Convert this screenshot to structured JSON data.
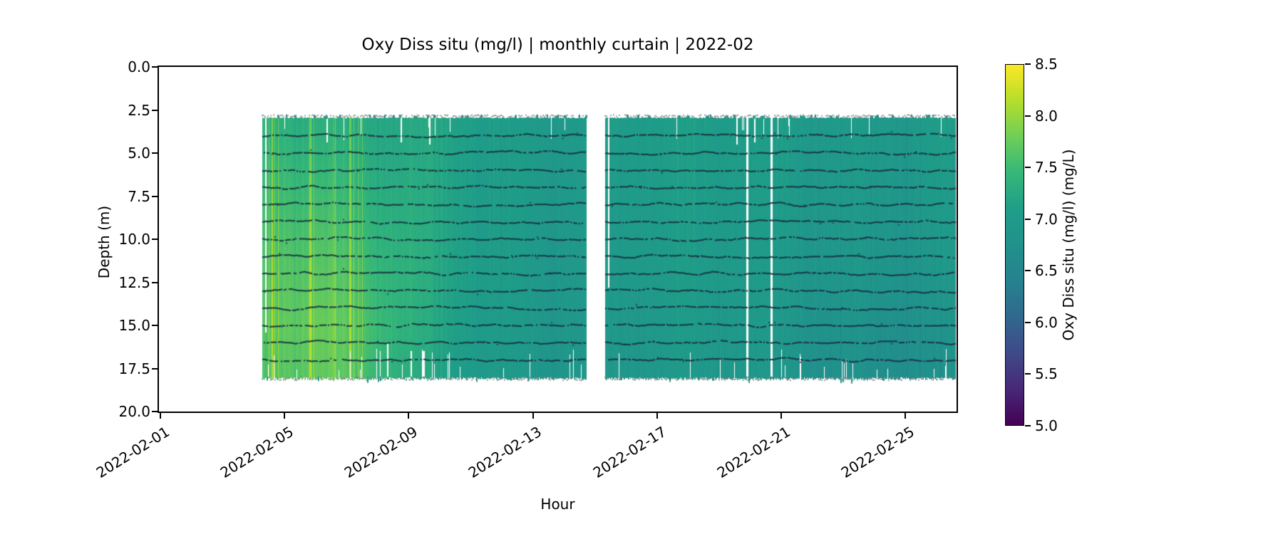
{
  "chart_data": {
    "type": "heatmap",
    "title": "Oxy Diss situ (mg/l) | monthly curtain | 2022-02",
    "xlabel": "Hour",
    "ylabel": "Depth (m)",
    "x_axis": {
      "tick_labels": [
        "2022-02-01",
        "2022-02-05",
        "2022-02-09",
        "2022-02-13",
        "2022-02-17",
        "2022-02-21",
        "2022-02-25"
      ],
      "tick_days": [
        0,
        4,
        8,
        12,
        16,
        20,
        24
      ],
      "day_range": [
        -0.05,
        25.68
      ],
      "tick_rotation_deg": 32
    },
    "y_axis": {
      "tick_labels": [
        "0.0",
        "2.5",
        "5.0",
        "7.5",
        "10.0",
        "12.5",
        "15.0",
        "17.5",
        "20.0"
      ],
      "tick_values": [
        0,
        2.5,
        5,
        7.5,
        10,
        12.5,
        15,
        17.5,
        20
      ],
      "range": [
        0,
        20
      ],
      "inverted": true
    },
    "colorbar": {
      "label": "Oxy Diss situ (mg/l) (mg/L)",
      "vmin": 5.0,
      "vmax": 8.5,
      "tick_labels": [
        "8.5",
        "8.0",
        "7.5",
        "7.0",
        "6.5",
        "6.0",
        "5.5",
        "5.0"
      ],
      "tick_values": [
        8.5,
        8.0,
        7.5,
        7.0,
        6.5,
        6.0,
        5.5,
        5.0
      ],
      "colormap": "viridis"
    },
    "viridis_stops": [
      "#440154",
      "#482878",
      "#3e4a89",
      "#31688e",
      "#26828e",
      "#21918c",
      "#1f9e89",
      "#35b779",
      "#6ece58",
      "#b5de2b",
      "#fde725"
    ],
    "segments": [
      {
        "day_start": 3.28,
        "day_end": 13.7
      },
      {
        "day_start": 14.32,
        "day_end": 25.6
      }
    ],
    "depth_extent": [
      2.92,
      17.98
    ],
    "grid": {
      "days": [
        3.28,
        4,
        5,
        6,
        7,
        8,
        9,
        11,
        13,
        15,
        17,
        19,
        21,
        23,
        25,
        25.6
      ],
      "depths": [
        3,
        6,
        9,
        12,
        15,
        18
      ],
      "values": [
        [
          7.35,
          7.45,
          7.55,
          7.62,
          7.66,
          7.6
        ],
        [
          7.4,
          7.52,
          7.62,
          7.72,
          7.78,
          7.72
        ],
        [
          7.35,
          7.48,
          7.62,
          7.72,
          7.8,
          7.76
        ],
        [
          7.3,
          7.4,
          7.52,
          7.62,
          7.7,
          7.66
        ],
        [
          7.24,
          7.3,
          7.38,
          7.46,
          7.52,
          7.46
        ],
        [
          7.18,
          7.2,
          7.26,
          7.3,
          7.3,
          7.24
        ],
        [
          7.14,
          7.14,
          7.15,
          7.15,
          7.14,
          7.08
        ],
        [
          7.06,
          7.06,
          7.06,
          7.04,
          7.01,
          6.98
        ],
        [
          7.05,
          7.04,
          7.02,
          7.0,
          6.99,
          6.95
        ],
        [
          7.06,
          7.05,
          7.02,
          7.0,
          6.96,
          6.92
        ],
        [
          7.02,
          7.02,
          7.0,
          6.97,
          6.94,
          6.9
        ],
        [
          7.05,
          7.04,
          7.01,
          6.99,
          6.95,
          6.9
        ],
        [
          7.08,
          7.05,
          7.02,
          6.99,
          6.94,
          6.88
        ],
        [
          7.02,
          7.0,
          6.96,
          6.91,
          6.86,
          6.8
        ],
        [
          7.0,
          6.97,
          6.92,
          6.86,
          6.8,
          6.74
        ],
        [
          7.0,
          6.97,
          6.92,
          6.86,
          6.8,
          6.74
        ]
      ]
    },
    "sensor_line_depths": [
      4,
      5,
      6,
      7,
      8,
      9,
      10,
      11,
      12,
      13,
      14,
      15,
      16,
      17
    ],
    "fringe": {
      "top_depth": 2.85,
      "bottom_depth": 18.1
    },
    "missing_columns": [
      {
        "day": 3.38,
        "d0": 2.92,
        "d1": 15.4,
        "w": 2
      },
      {
        "day": 5.35,
        "d0": 2.92,
        "d1": 4.35,
        "w": 2
      },
      {
        "day": 7.3,
        "d0": 16.0,
        "d1": 18.0,
        "w": 2
      },
      {
        "day": 7.74,
        "d0": 2.92,
        "d1": 4.35,
        "w": 2
      },
      {
        "day": 8.05,
        "d0": 16.5,
        "d1": 18.0,
        "w": 2
      },
      {
        "day": 8.45,
        "d0": 16.5,
        "d1": 18.0,
        "w": 3
      },
      {
        "day": 8.66,
        "d0": 2.92,
        "d1": 4.5,
        "w": 2
      },
      {
        "day": 14.42,
        "d0": 2.92,
        "d1": 12.8,
        "w": 2
      },
      {
        "day": 18.55,
        "d0": 2.92,
        "d1": 4.5,
        "w": 2
      },
      {
        "day": 18.87,
        "d0": 2.92,
        "d1": 17.95,
        "w": 3
      },
      {
        "day": 19.13,
        "d0": 2.92,
        "d1": 4.35,
        "w": 2
      },
      {
        "day": 19.65,
        "d0": 2.92,
        "d1": 17.95,
        "w": 3
      }
    ],
    "noise_seed": 7,
    "colors": {
      "spine": "#000000",
      "text": "#000000",
      "sensor_line": "rgba(23,52,64,0.85)",
      "fringe_gray": "rgba(125,125,125,0.88)",
      "background": "#ffffff"
    }
  }
}
